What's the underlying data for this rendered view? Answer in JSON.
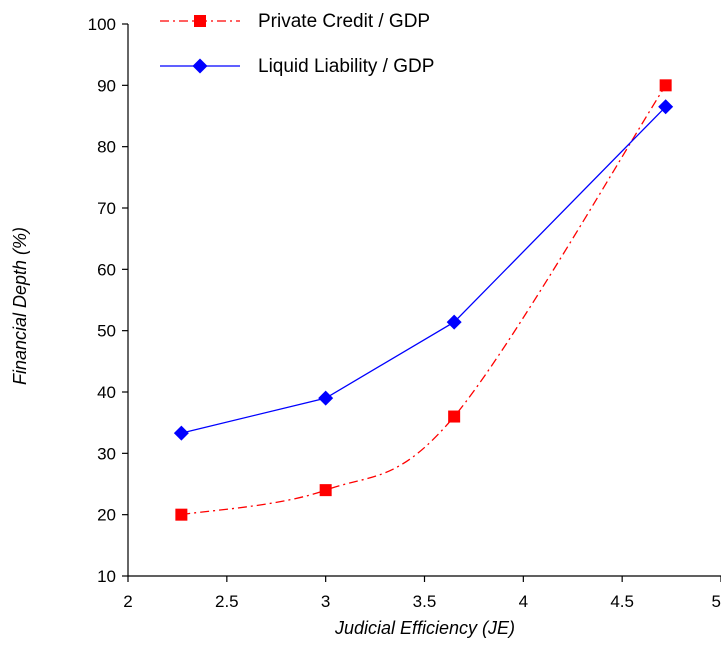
{
  "chart_data": {
    "type": "line",
    "title": "",
    "xlabel": "Judicial Efficiency (JE)",
    "ylabel": "Financial Depth (%)",
    "xlim": [
      2,
      5
    ],
    "ylim": [
      10,
      100
    ],
    "xticks": [
      2,
      2.5,
      3,
      3.5,
      4,
      4.5,
      5
    ],
    "xtick_labels": [
      "2",
      "2.5",
      "3",
      "3.5",
      "4",
      "4.5",
      "5"
    ],
    "yticks": [
      10,
      20,
      30,
      40,
      50,
      60,
      70,
      80,
      90,
      100
    ],
    "ytick_labels": [
      "10",
      "20",
      "30",
      "40",
      "50",
      "60",
      "70",
      "80",
      "90",
      "100"
    ],
    "grid": false,
    "legend_position": "top",
    "series": [
      {
        "name": "Private Credit / GDP",
        "color": "#ff0000",
        "marker": "square",
        "line_style": "dash-dot",
        "x": [
          2.27,
          3.0,
          3.65,
          4.72
        ],
        "y": [
          20,
          24,
          36,
          90
        ]
      },
      {
        "name": "Liquid Liability / GDP",
        "color": "#0000ff",
        "marker": "diamond",
        "line_style": "solid",
        "x": [
          2.27,
          3.0,
          3.65,
          4.72
        ],
        "y": [
          33.3,
          39,
          51.4,
          86.5
        ]
      }
    ]
  }
}
